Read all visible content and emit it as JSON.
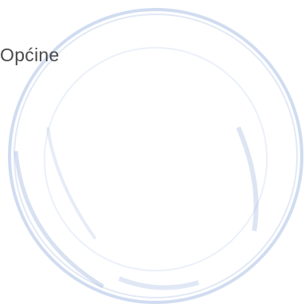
{
  "document": {
    "text": "Općine"
  }
}
